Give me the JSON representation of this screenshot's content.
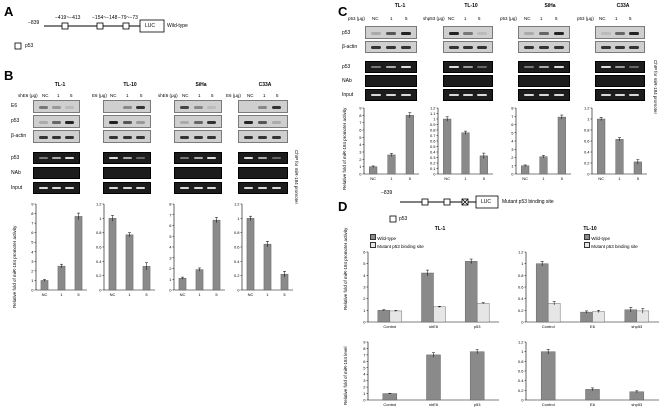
{
  "panels": {
    "A": "A",
    "B": "B",
    "C": "C",
    "D": "D"
  },
  "promoter": {
    "start_label": "−839",
    "sites": [
      "−419~−413",
      "−154~−148",
      "−79~−73"
    ],
    "reporter": "LUC",
    "wild_label": "Wild-type",
    "legend_label": "p53"
  },
  "mutant_promoter": {
    "start_label": "−839",
    "reporter": "LUC",
    "mut_label": "Mutant p53 binding site",
    "legend_label": "p53"
  },
  "panel_b": {
    "groups": [
      {
        "cell": "TL-1",
        "lane_label": "shE6 (μg)",
        "lanes": [
          "NC",
          "1",
          "5"
        ]
      },
      {
        "cell": "TL-10",
        "lane_label": "E6 (μg)",
        "lanes": [
          "NC",
          "1",
          "5"
        ]
      },
      {
        "cell": "SiHa",
        "lane_label": "shE6 (μg)",
        "lanes": [
          "NC",
          "1",
          "5"
        ]
      },
      {
        "cell": "C33A",
        "lane_label": "E6 (μg)",
        "lanes": [
          "NC",
          "1",
          "5"
        ]
      }
    ],
    "blot_rows": [
      "E6",
      "p53",
      "β-actin"
    ],
    "chip_rows": [
      "p53",
      "NAb",
      "Input"
    ],
    "chip_side_label": "ChIP for miR-184 promoter",
    "ylabel": "Relative fold of miR-184 promoter activity"
  },
  "panel_c": {
    "groups": [
      {
        "cell": "TL-1",
        "lane_label": "p53 (μg)",
        "lanes": [
          "NC",
          "1",
          "5"
        ]
      },
      {
        "cell": "TL-10",
        "lane_label": "shp53 (μg)",
        "lanes": [
          "NC",
          "1",
          "5"
        ]
      },
      {
        "cell": "SiHa",
        "lane_label": "p53 (μg)",
        "lanes": [
          "NC",
          "1",
          "5"
        ]
      },
      {
        "cell": "C33A",
        "lane_label": "p53 (μg)",
        "lanes": [
          "NC",
          "1",
          "5"
        ]
      }
    ],
    "blot_rows": [
      "p53",
      "β-actin"
    ],
    "chip_rows": [
      "p53",
      "NAb",
      "Input"
    ],
    "chip_side_label": "ChIP for miR-184 promoter",
    "ylabel": "Relative fold of miR-184 promoter activity"
  },
  "panel_d": {
    "legend": [
      "Wild-type",
      "Mutant p53 binding site"
    ],
    "tl1_title": "TL-1",
    "tl10_title": "TL-10",
    "ylabel_top": "Relative fold of miR-184 promoter activity",
    "ylabel_bottom": "Relative fold of miR-184 level"
  },
  "chart_data": [
    {
      "id": "B-TL1",
      "type": "bar",
      "categories": [
        "NC",
        "1",
        "5"
      ],
      "values": [
        1,
        2.5,
        7.7
      ],
      "errors": [
        0.1,
        0.2,
        0.35
      ],
      "ylim": [
        0,
        9
      ],
      "yticks": [
        0,
        1,
        2,
        3,
        4,
        5,
        6,
        7,
        8,
        9
      ],
      "ylabel": "Relative fold of miR-184 promoter activity"
    },
    {
      "id": "B-TL10",
      "type": "bar",
      "categories": [
        "NC",
        "1",
        "5"
      ],
      "values": [
        1.0,
        0.77,
        0.33
      ],
      "errors": [
        0.04,
        0.03,
        0.05
      ],
      "ylim": [
        0,
        1.2
      ],
      "yticks": [
        0,
        0.2,
        0.4,
        0.6,
        0.8,
        1,
        1.2
      ]
    },
    {
      "id": "B-SiHa",
      "type": "bar",
      "categories": [
        "NC",
        "1",
        "5"
      ],
      "values": [
        1.1,
        1.9,
        6.5
      ],
      "errors": [
        0.1,
        0.15,
        0.25
      ],
      "ylim": [
        0,
        8
      ],
      "yticks": [
        0,
        1,
        2,
        3,
        4,
        5,
        6,
        7,
        8
      ]
    },
    {
      "id": "B-C33A",
      "type": "bar",
      "categories": [
        "NC",
        "1",
        "5"
      ],
      "values": [
        1.0,
        0.64,
        0.22
      ],
      "errors": [
        0.03,
        0.04,
        0.04
      ],
      "ylim": [
        0,
        1.2
      ],
      "yticks": [
        0,
        0.2,
        0.4,
        0.6,
        0.8,
        1,
        1.2
      ]
    },
    {
      "id": "C-TL1",
      "type": "bar",
      "categories": [
        "NC",
        "1",
        "5"
      ],
      "values": [
        1.0,
        2.6,
        8.0
      ],
      "errors": [
        0.1,
        0.2,
        0.35
      ],
      "ylim": [
        0,
        9
      ],
      "yticks": [
        0,
        1,
        2,
        3,
        4,
        5,
        6,
        7,
        8,
        9
      ],
      "ylabel": "Relative fold of miR-184 promoter activity"
    },
    {
      "id": "C-TL10",
      "type": "bar",
      "categories": [
        "NC",
        "1",
        "5"
      ],
      "values": [
        1.0,
        0.75,
        0.33
      ],
      "errors": [
        0.04,
        0.03,
        0.05
      ],
      "ylim": [
        0,
        1.2
      ],
      "yticks": [
        0,
        0.1,
        0.2,
        0.3,
        0.4,
        0.5,
        0.6,
        0.7,
        0.8,
        0.9,
        1,
        1.1,
        1.2
      ]
    },
    {
      "id": "C-SiHa",
      "type": "bar",
      "categories": [
        "NC",
        "1",
        "5"
      ],
      "values": [
        1.0,
        2.1,
        6.9
      ],
      "errors": [
        0.1,
        0.15,
        0.25
      ],
      "ylim": [
        0,
        8
      ],
      "yticks": [
        0,
        1,
        2,
        3,
        4,
        5,
        6,
        7,
        8
      ]
    },
    {
      "id": "C-C33A",
      "type": "bar",
      "categories": [
        "NC",
        "1",
        "5"
      ],
      "values": [
        1.0,
        0.63,
        0.22
      ],
      "errors": [
        0.03,
        0.03,
        0.04
      ],
      "ylim": [
        0,
        1.2
      ],
      "yticks": [
        0,
        0.2,
        0.4,
        0.6,
        0.8,
        1,
        1.2
      ]
    },
    {
      "id": "D-TL1-promoter",
      "type": "bar",
      "categories": [
        "Control",
        "shE6",
        "p53"
      ],
      "series": [
        {
          "name": "Wild-type",
          "values": [
            1.0,
            4.2,
            5.2
          ],
          "errors": [
            0.05,
            0.25,
            0.2
          ]
        },
        {
          "name": "Mutant p53 binding site",
          "values": [
            0.95,
            1.3,
            1.6
          ],
          "errors": [
            0.05,
            0.05,
            0.06
          ]
        }
      ],
      "ylim": [
        0,
        6
      ],
      "yticks": [
        0,
        1,
        2,
        3,
        4,
        5,
        6
      ],
      "title": "TL-1"
    },
    {
      "id": "D-TL10-promoter",
      "type": "bar",
      "categories": [
        "Control",
        "E6",
        "shp53"
      ],
      "series": [
        {
          "name": "Wild-type",
          "values": [
            1.0,
            0.17,
            0.21
          ],
          "errors": [
            0.04,
            0.02,
            0.04
          ]
        },
        {
          "name": "Mutant p53 binding site",
          "values": [
            0.32,
            0.18,
            0.19
          ],
          "errors": [
            0.03,
            0.02,
            0.04
          ]
        }
      ],
      "ylim": [
        0,
        1.2
      ],
      "yticks": [
        0,
        0.2,
        0.4,
        0.6,
        0.8,
        1,
        1.2
      ],
      "title": "TL-10"
    },
    {
      "id": "D-TL1-level",
      "type": "bar",
      "categories": [
        "Control",
        "shE6",
        "p53"
      ],
      "values": [
        1.0,
        7.0,
        7.5
      ],
      "errors": [
        0.05,
        0.35,
        0.3
      ],
      "ylim": [
        0,
        9
      ],
      "yticks": [
        0,
        1,
        2,
        3,
        4,
        5,
        6,
        7,
        8,
        9
      ]
    },
    {
      "id": "D-TL10-level",
      "type": "bar",
      "categories": [
        "Control",
        "E6",
        "shp53"
      ],
      "values": [
        1.0,
        0.22,
        0.17
      ],
      "errors": [
        0.05,
        0.03,
        0.02
      ],
      "ylim": [
        0,
        1.2
      ],
      "yticks": [
        0,
        0.2,
        0.4,
        0.6,
        0.8,
        1,
        1.2
      ]
    }
  ]
}
